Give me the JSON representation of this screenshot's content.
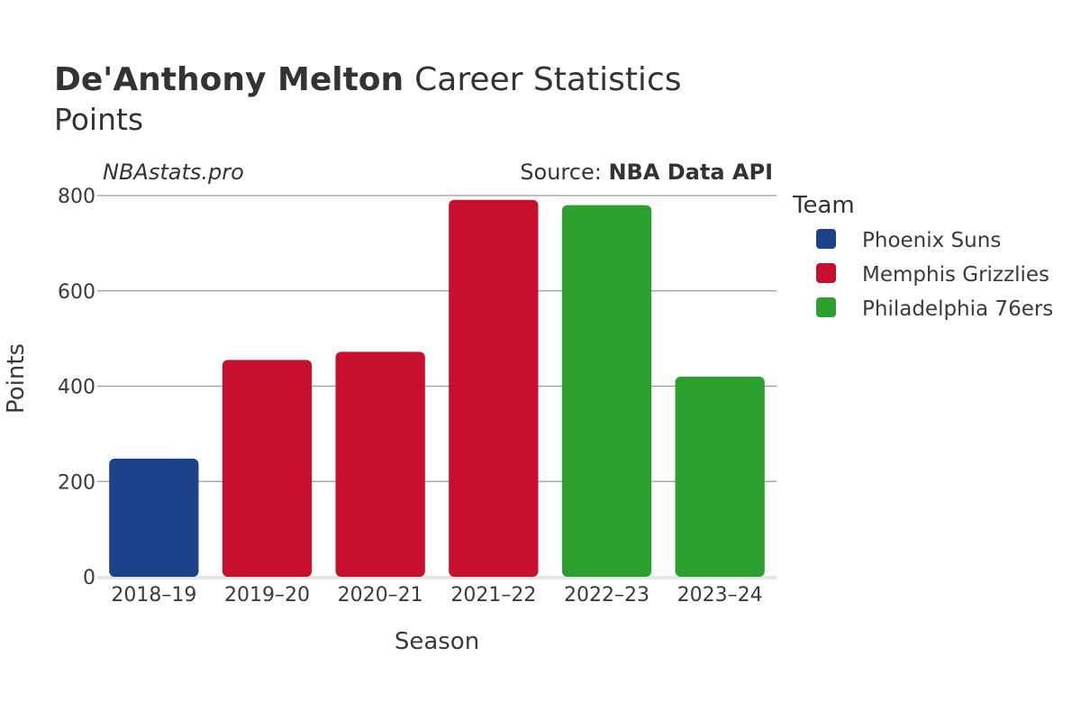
{
  "chart_data": {
    "type": "bar",
    "title_bold": "De'Anthony Melton",
    "title_rest": "Career Statistics",
    "subtitle": "Points",
    "watermark": "NBAstats.pro",
    "source_prefix": "Source: ",
    "source_name": "NBA Data API",
    "xlabel": "Season",
    "ylabel": "Points",
    "ylim": [
      0,
      800
    ],
    "yticks": [
      0,
      200,
      400,
      600,
      800
    ],
    "grid": true,
    "legend_title": "Team",
    "legend_position": "right",
    "categories": [
      "2018–19",
      "2019–20",
      "2020–21",
      "2021–22",
      "2022–23",
      "2023–24"
    ],
    "values": [
      248,
      455,
      472,
      791,
      780,
      420
    ],
    "bar_teams": [
      "Phoenix Suns",
      "Memphis Grizzlies",
      "Memphis Grizzlies",
      "Memphis Grizzlies",
      "Philadelphia 76ers",
      "Philadelphia 76ers"
    ],
    "series": [
      {
        "name": "Phoenix Suns",
        "color": "#1d428a"
      },
      {
        "name": "Memphis Grizzlies",
        "color": "#c8102e"
      },
      {
        "name": "Philadelphia 76ers",
        "color": "#2ca02c"
      }
    ]
  }
}
